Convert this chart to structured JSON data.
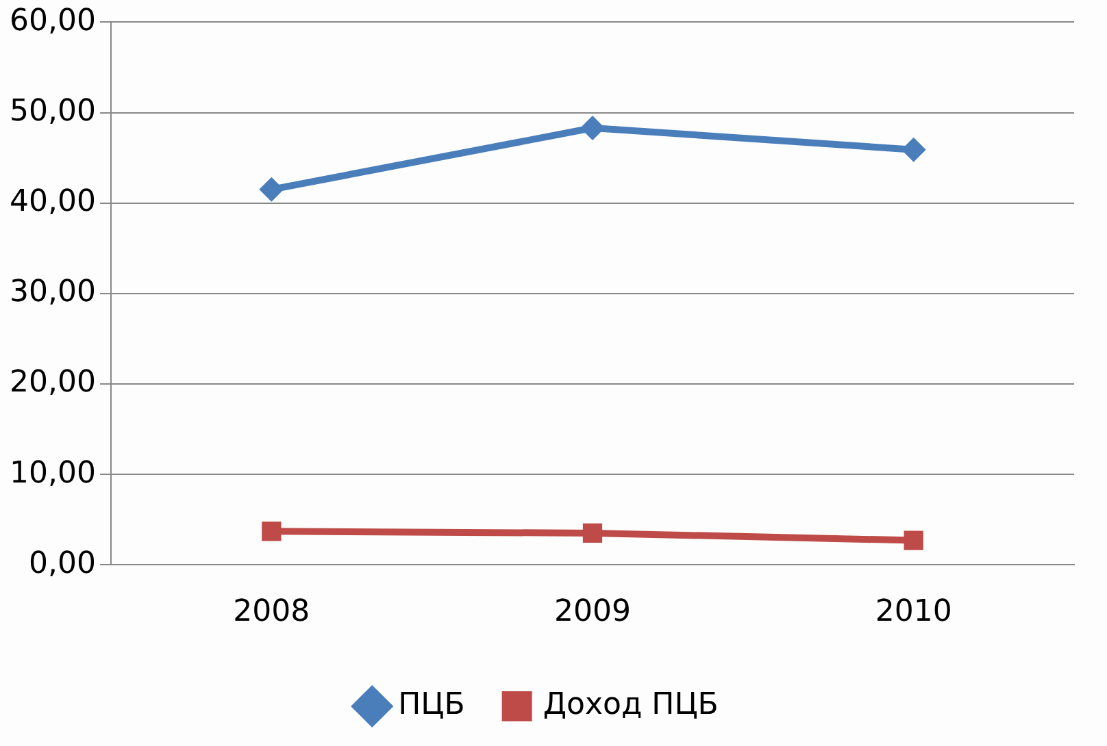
{
  "chart_data": {
    "type": "line",
    "categories": [
      "2008",
      "2009",
      "2010"
    ],
    "series": [
      {
        "name": "ПЦБ",
        "color": "#4a7ebb",
        "marker": "diamond",
        "values": [
          41.5,
          48.3,
          45.9
        ]
      },
      {
        "name": "Доход ПЦБ",
        "color": "#be4b48",
        "marker": "square",
        "values": [
          3.7,
          3.5,
          2.7
        ]
      }
    ],
    "ylim": [
      0,
      60
    ],
    "yticks": [
      {
        "value": 0,
        "label": "0,00"
      },
      {
        "value": 10,
        "label": "10,00"
      },
      {
        "value": 20,
        "label": "20,00"
      },
      {
        "value": 30,
        "label": "30,00"
      },
      {
        "value": 40,
        "label": "40,00"
      },
      {
        "value": 50,
        "label": "50,00"
      },
      {
        "value": 60,
        "label": "60,00"
      }
    ],
    "grid": "y",
    "legend": "bottom",
    "line_style": "solid"
  }
}
